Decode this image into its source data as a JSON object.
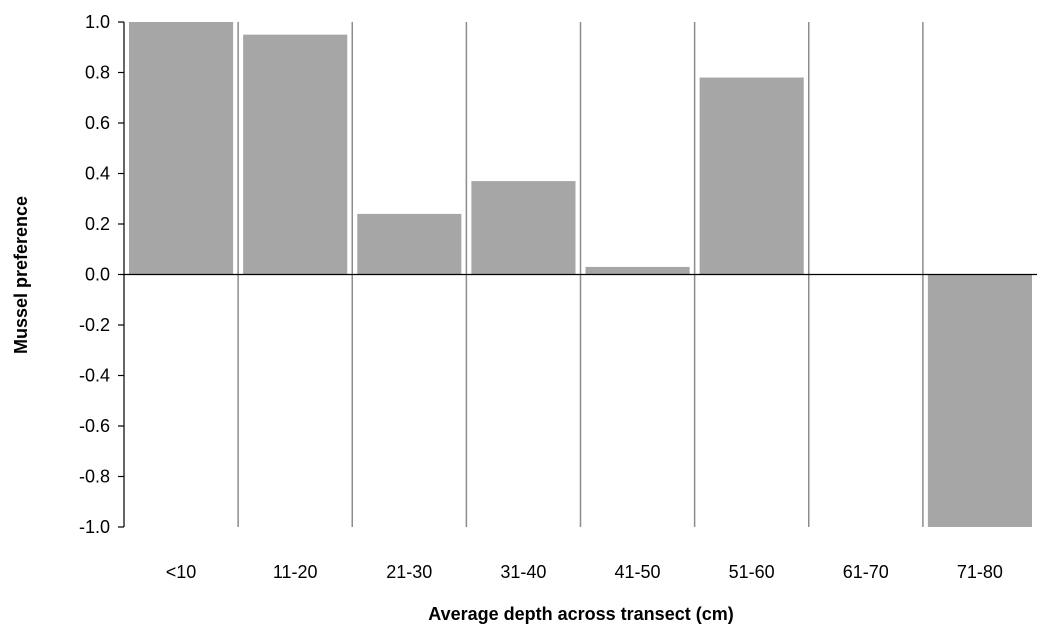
{
  "chart_data": {
    "type": "bar",
    "title": "",
    "xlabel": "Average depth across transect (cm)",
    "ylabel": "Mussel preference",
    "categories": [
      "<10",
      "11-20",
      "21-30",
      "31-40",
      "41-50",
      "51-60",
      "61-70",
      "71-80"
    ],
    "values": [
      1.0,
      0.95,
      0.24,
      0.37,
      0.03,
      0.78,
      0.0,
      -1.0
    ],
    "ylim": [
      -1.0,
      1.0
    ],
    "yticks": [
      "1.0",
      "0.8",
      "0.6",
      "0.4",
      "0.2",
      "0.0",
      "-0.2",
      "-0.4",
      "-0.6",
      "-0.8",
      "-1.0"
    ],
    "grid": "vertical category separators",
    "legend": "none",
    "colors": {
      "bar": "#a6a6a6",
      "axis": "#000000",
      "separator": "#8c8c8c"
    }
  }
}
